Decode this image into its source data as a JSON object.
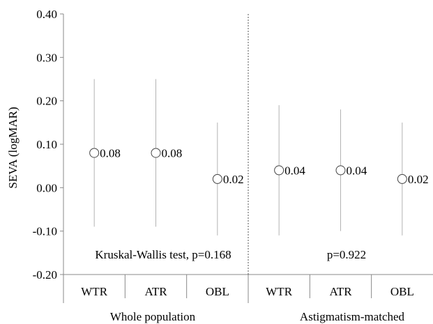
{
  "chart_data": {
    "type": "scatter",
    "title": "",
    "ylabel": "SEVA (logMAR)",
    "xlabel": "",
    "ylim": [
      -0.2,
      0.4
    ],
    "yticks": [
      -0.2,
      -0.1,
      0.0,
      0.1,
      0.2,
      0.3,
      0.4
    ],
    "ytick_labels": [
      "-0.20",
      "-0.10",
      "0.00",
      "0.10",
      "0.20",
      "0.30",
      "0.40"
    ],
    "grid": false,
    "groups": [
      {
        "name": "Whole population",
        "stat_label": "Kruskal-Wallis test, p=0.168"
      },
      {
        "name": "Astigmatism-matched",
        "stat_label": "p=0.922"
      }
    ],
    "points": [
      {
        "group": 0,
        "category": "WTR",
        "value": 0.08,
        "low": -0.09,
        "high": 0.25,
        "label": "0.08"
      },
      {
        "group": 0,
        "category": "ATR",
        "value": 0.08,
        "low": -0.09,
        "high": 0.25,
        "label": "0.08"
      },
      {
        "group": 0,
        "category": "OBL",
        "value": 0.02,
        "low": -0.11,
        "high": 0.15,
        "label": "0.02"
      },
      {
        "group": 1,
        "category": "WTR",
        "value": 0.04,
        "low": -0.11,
        "high": 0.19,
        "label": "0.04"
      },
      {
        "group": 1,
        "category": "ATR",
        "value": 0.04,
        "low": -0.1,
        "high": 0.18,
        "label": "0.04"
      },
      {
        "group": 1,
        "category": "OBL",
        "value": 0.02,
        "low": -0.11,
        "high": 0.15,
        "label": "0.02"
      }
    ]
  }
}
